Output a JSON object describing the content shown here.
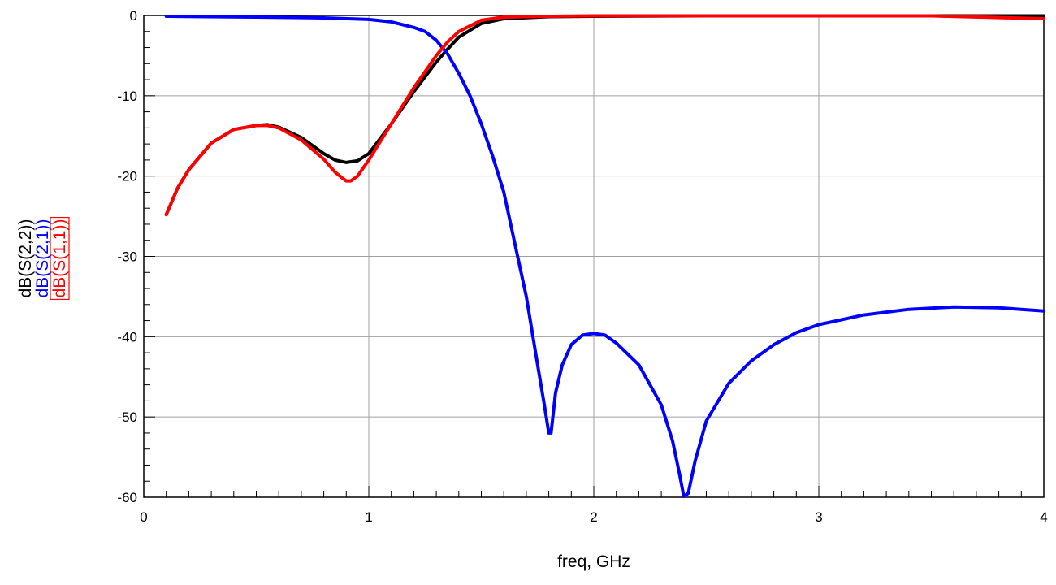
{
  "chart_data": {
    "type": "line",
    "title": "",
    "xlabel": "freq, GHz",
    "xlim": [
      0,
      4
    ],
    "ylim": [
      -60,
      0
    ],
    "x_ticks": [
      0,
      1,
      2,
      3,
      4
    ],
    "x_tick_labels": [
      "0",
      "1",
      "2",
      "3",
      "4"
    ],
    "y_ticks": [
      0,
      -10,
      -20,
      -30,
      -40,
      -50,
      -60
    ],
    "y_tick_labels": [
      "0",
      "-10",
      "-20",
      "-30",
      "-40",
      "-50",
      "-60"
    ],
    "grid": true,
    "legend": "y-axis stacked labels",
    "series": [
      {
        "name": "dB(S(2,2))",
        "color": "#000000",
        "highlighted": false,
        "x": [
          0.1,
          0.15,
          0.2,
          0.3,
          0.4,
          0.5,
          0.55,
          0.6,
          0.7,
          0.8,
          0.85,
          0.9,
          0.95,
          1.0,
          1.1,
          1.2,
          1.3,
          1.35,
          1.4,
          1.5,
          1.6,
          1.8,
          2.0,
          2.5,
          3.0,
          3.5,
          4.0
        ],
        "y": [
          -24.8,
          -21.5,
          -19.2,
          -15.9,
          -14.2,
          -13.7,
          -13.6,
          -13.9,
          -15.2,
          -17.2,
          -18.0,
          -18.3,
          -18.1,
          -17.2,
          -13.5,
          -9.5,
          -5.8,
          -4.2,
          -2.7,
          -1.0,
          -0.4,
          -0.15,
          -0.1,
          -0.05,
          -0.05,
          -0.05,
          -0.05
        ]
      },
      {
        "name": "dB(S(2,1))",
        "color": "#0000ff",
        "highlighted": false,
        "x": [
          0.1,
          0.5,
          0.8,
          1.0,
          1.1,
          1.2,
          1.25,
          1.3,
          1.35,
          1.4,
          1.45,
          1.5,
          1.55,
          1.6,
          1.65,
          1.7,
          1.75,
          1.78,
          1.8,
          1.81,
          1.83,
          1.86,
          1.9,
          1.95,
          2.0,
          2.05,
          2.1,
          2.2,
          2.3,
          2.35,
          2.38,
          2.4,
          2.42,
          2.45,
          2.5,
          2.6,
          2.7,
          2.8,
          2.9,
          3.0,
          3.2,
          3.4,
          3.6,
          3.8,
          4.0
        ],
        "y": [
          -0.1,
          -0.2,
          -0.3,
          -0.5,
          -0.8,
          -1.5,
          -2.0,
          -3.1,
          -4.8,
          -7.2,
          -10.0,
          -13.5,
          -17.5,
          -22.0,
          -28.5,
          -35.0,
          -43.5,
          -48.5,
          -52.0,
          -52.0,
          -47.0,
          -43.5,
          -41.0,
          -39.8,
          -39.6,
          -39.8,
          -40.8,
          -43.5,
          -48.5,
          -53.0,
          -57.0,
          -59.9,
          -59.5,
          -55.5,
          -50.5,
          -45.8,
          -43.0,
          -41.0,
          -39.5,
          -38.5,
          -37.3,
          -36.6,
          -36.3,
          -36.4,
          -36.8
        ]
      },
      {
        "name": "dB(S(1,1))",
        "color": "#ff0000",
        "highlighted": true,
        "x": [
          0.1,
          0.15,
          0.2,
          0.3,
          0.4,
          0.5,
          0.55,
          0.6,
          0.7,
          0.8,
          0.85,
          0.88,
          0.9,
          0.92,
          0.95,
          1.0,
          1.1,
          1.2,
          1.3,
          1.35,
          1.4,
          1.5,
          1.6,
          1.8,
          2.0,
          2.5,
          3.0,
          3.5,
          4.0
        ],
        "y": [
          -24.8,
          -21.5,
          -19.2,
          -15.9,
          -14.2,
          -13.7,
          -13.7,
          -14.0,
          -15.5,
          -17.9,
          -19.5,
          -20.2,
          -20.6,
          -20.6,
          -20.0,
          -18.0,
          -13.5,
          -9.0,
          -5.0,
          -3.3,
          -2.0,
          -0.6,
          -0.2,
          -0.1,
          -0.05,
          -0.05,
          -0.05,
          -0.05,
          -0.4
        ]
      }
    ]
  }
}
